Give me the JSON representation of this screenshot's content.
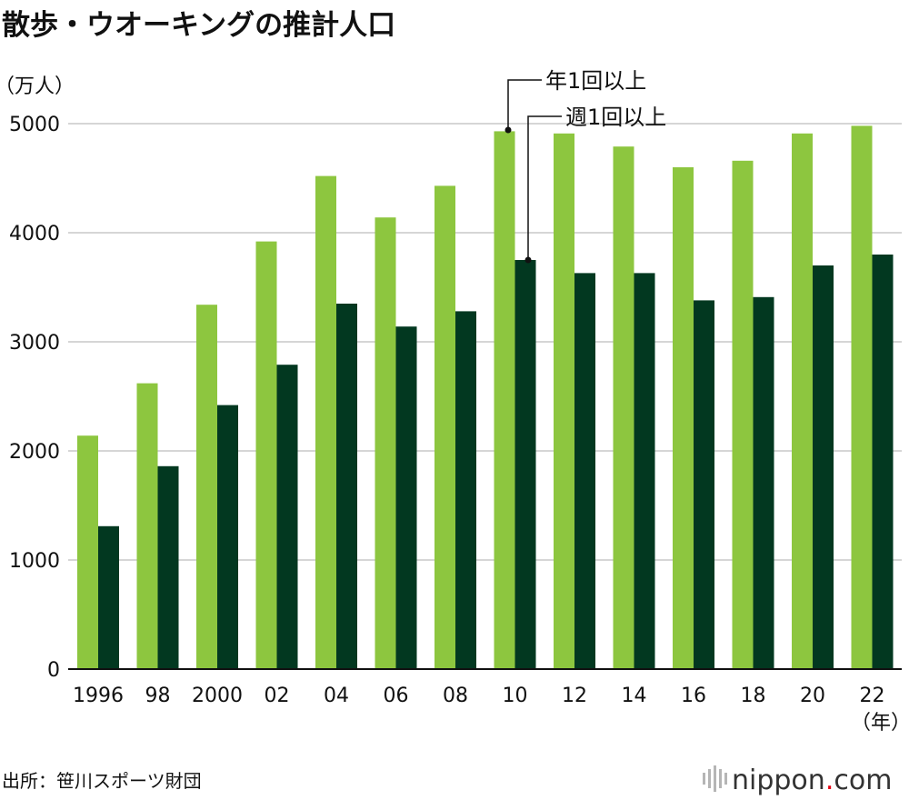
{
  "chart_data": {
    "type": "bar",
    "title": "散歩・ウオーキングの推計人口",
    "ylabel": "（万人）",
    "xlabel": "（年）",
    "ylim": [
      0,
      5000
    ],
    "yticks": [
      "0",
      "1000",
      "2000",
      "3000",
      "4000",
      "5000"
    ],
    "categories": [
      "1996",
      "98",
      "2000",
      "02",
      "04",
      "06",
      "08",
      "10",
      "12",
      "14",
      "16",
      "18",
      "20",
      "22"
    ],
    "series": [
      {
        "name": "年1回以上",
        "color": "#8dc63f",
        "values": [
          2140,
          2620,
          3340,
          3920,
          4520,
          4140,
          4430,
          4930,
          4910,
          4790,
          4600,
          4660,
          4910,
          4980
        ]
      },
      {
        "name": "週1回以上",
        "color": "#023820",
        "values": [
          1310,
          1860,
          2420,
          2790,
          3350,
          3140,
          3280,
          3750,
          3630,
          3630,
          3380,
          3410,
          3700,
          3800
        ]
      }
    ],
    "grid": true,
    "legend": "annotated-top"
  },
  "source": "出所：笹川スポーツ財団",
  "logo": {
    "prefix": "nippon",
    "dot": ".",
    "suffix": "com",
    "accent_color": "#e60012"
  }
}
